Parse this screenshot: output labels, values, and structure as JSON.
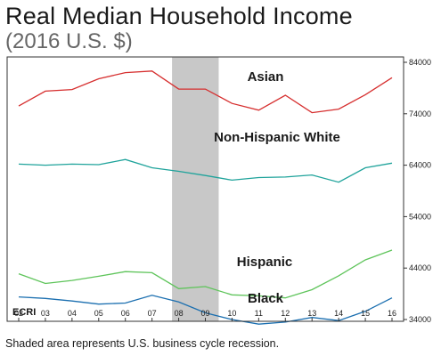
{
  "chart_data": {
    "type": "line",
    "title": "Real Median Household Income",
    "subtitle": "(2016 U.S. $)",
    "x_labels": [
      "02",
      "03",
      "04",
      "05",
      "06",
      "07",
      "08",
      "09",
      "10",
      "11",
      "12",
      "13",
      "14",
      "15",
      "16"
    ],
    "x": [
      2002,
      2003,
      2004,
      2005,
      2006,
      2007,
      2008,
      2009,
      2010,
      2011,
      2012,
      2013,
      2014,
      2015,
      2016
    ],
    "y_ticks": [
      "34000",
      "44000",
      "54000",
      "64000",
      "74000",
      "84000"
    ],
    "ylim": [
      34000,
      84000
    ],
    "y_axis_side": "right",
    "grid": false,
    "recession_shading": {
      "x_start": 2007.75,
      "x_end": 2009.5,
      "color": "#c8c8c8"
    },
    "series": [
      {
        "name": "Asian",
        "color": "#d62e2e",
        "values": [
          75500,
          78400,
          78700,
          80800,
          82000,
          82300,
          78800,
          78800,
          76000,
          74700,
          77600,
          74200,
          74900,
          77700,
          81000
        ]
      },
      {
        "name": "Non-Hispanic White",
        "color": "#1fa39b",
        "values": [
          64200,
          64000,
          64200,
          64100,
          65100,
          63500,
          62800,
          62000,
          61100,
          61600,
          61700,
          62100,
          60700,
          63500,
          64400
        ]
      },
      {
        "name": "Hispanic",
        "color": "#5ec45a",
        "values": [
          42900,
          41000,
          41600,
          42400,
          43300,
          43100,
          40000,
          40400,
          38800,
          38600,
          38200,
          39800,
          42500,
          45600,
          47500
        ]
      },
      {
        "name": "Black",
        "color": "#1b6fb0",
        "values": [
          38400,
          38100,
          37600,
          37000,
          37200,
          38700,
          37400,
          35300,
          34000,
          33100,
          33500,
          34400,
          33800,
          35600,
          38200
        ]
      }
    ],
    "footnote": "Shaded area represents U.S. business cycle recession.",
    "logo": "ECRI"
  }
}
